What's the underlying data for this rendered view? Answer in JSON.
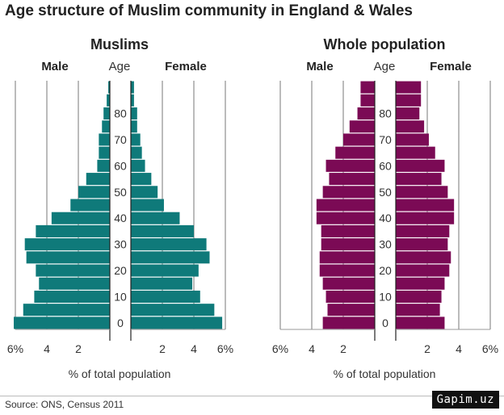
{
  "title": "Age structure of Muslim community in England & Wales",
  "source": "Source: ONS, Census 2011",
  "watermark": "Gapim.uz",
  "chart_data": [
    {
      "type": "bar",
      "orientation": "horizontal-pyramid",
      "title": "Muslims",
      "color": "#0f7a7a",
      "male_label": "Male",
      "female_label": "Female",
      "age_label": "Age",
      "xlabel": "% of total population",
      "x_ticks": [
        "6%",
        "4",
        "2",
        "2",
        "4",
        "6%"
      ],
      "xlim": [
        0,
        6
      ],
      "age_ticks": [
        "0",
        "10",
        "20",
        "30",
        "40",
        "50",
        "60",
        "70",
        "80"
      ],
      "age_groups": [
        "0-4",
        "5-9",
        "10-14",
        "15-19",
        "20-24",
        "25-29",
        "30-34",
        "35-39",
        "40-44",
        "45-49",
        "50-54",
        "55-59",
        "60-64",
        "65-69",
        "70-74",
        "75-79",
        "80-84",
        "85-89",
        "90+"
      ],
      "male": [
        6.1,
        5.5,
        4.8,
        4.5,
        4.7,
        5.3,
        5.4,
        4.7,
        3.7,
        2.5,
        2.0,
        1.5,
        0.8,
        0.7,
        0.7,
        0.5,
        0.4,
        0.2,
        0.1
      ],
      "female": [
        5.8,
        5.3,
        4.4,
        3.9,
        4.3,
        5.0,
        4.8,
        4.0,
        3.1,
        2.1,
        1.7,
        1.3,
        0.9,
        0.7,
        0.6,
        0.4,
        0.4,
        0.2,
        0.2
      ]
    },
    {
      "type": "bar",
      "orientation": "horizontal-pyramid",
      "title": "Whole population",
      "color": "#7b0a55",
      "male_label": "Male",
      "female_label": "Female",
      "age_label": "Age",
      "xlabel": "% of total population",
      "x_ticks": [
        "6%",
        "4",
        "2",
        "2",
        "4",
        "6%"
      ],
      "xlim": [
        0,
        6
      ],
      "age_ticks": [
        "0",
        "10",
        "20",
        "30",
        "40",
        "50",
        "60",
        "70",
        "80"
      ],
      "age_groups": [
        "0-4",
        "5-9",
        "10-14",
        "15-19",
        "20-24",
        "25-29",
        "30-34",
        "35-39",
        "40-44",
        "45-49",
        "50-54",
        "55-59",
        "60-64",
        "65-69",
        "70-74",
        "75-79",
        "80-84",
        "85-89",
        "90+"
      ],
      "male": [
        3.3,
        3.0,
        3.1,
        3.3,
        3.5,
        3.5,
        3.4,
        3.4,
        3.7,
        3.7,
        3.3,
        2.9,
        3.1,
        2.5,
        2.0,
        1.6,
        1.1,
        0.9,
        0.9
      ],
      "female": [
        3.1,
        2.8,
        2.9,
        3.1,
        3.4,
        3.5,
        3.3,
        3.4,
        3.7,
        3.7,
        3.3,
        2.9,
        3.1,
        2.5,
        2.1,
        1.8,
        1.5,
        1.6,
        1.6
      ]
    }
  ]
}
